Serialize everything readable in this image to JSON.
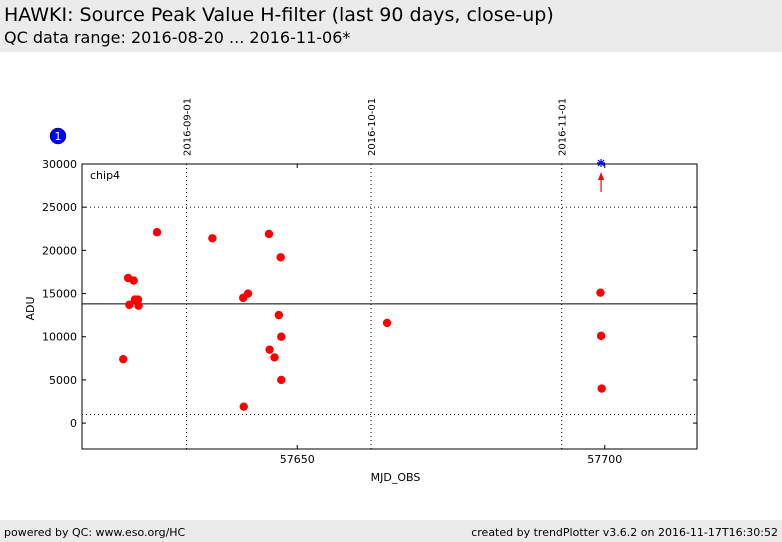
{
  "header": {
    "title": "HAWKI: Source Peak Value H-filter (last 90 days, close-up)",
    "subtitle": "QC data range: 2016-08-20 ... 2016-11-06*"
  },
  "footer": {
    "left": "powered by QC: www.eso.org/HC",
    "right": "created by trendPlotter v3.6.2 on 2016-11-17T16:30:52"
  },
  "chart_data": {
    "type": "scatter",
    "xlabel": "MJD_OBS",
    "ylabel": "ADU",
    "panel_label": "chip4",
    "badge": "1",
    "xlim": [
      57615,
      57715
    ],
    "ylim": [
      -3000,
      30000
    ],
    "xticks": [
      57650,
      57700
    ],
    "yticks": [
      0,
      5000,
      10000,
      15000,
      20000,
      25000,
      30000
    ],
    "date_ticks": [
      {
        "x": 57632,
        "label": "2016-09-01"
      },
      {
        "x": 57662,
        "label": "2016-10-01"
      },
      {
        "x": 57693,
        "label": "2016-11-01"
      }
    ],
    "reference_line": 13800,
    "limit_lines": [
      25000,
      1000
    ],
    "colors": {
      "points": "#ff0000",
      "outlier_arrow": "#ff0000",
      "outlier_marker": "#0000ff",
      "badge": "#0000ff"
    },
    "points": [
      {
        "x": 57621.7,
        "y": 7400
      },
      {
        "x": 57622.5,
        "y": 16800
      },
      {
        "x": 57622.7,
        "y": 13700
      },
      {
        "x": 57623.4,
        "y": 16500
      },
      {
        "x": 57623.6,
        "y": 14300
      },
      {
        "x": 57624.1,
        "y": 14300
      },
      {
        "x": 57624.2,
        "y": 13600
      },
      {
        "x": 57627.2,
        "y": 22100
      },
      {
        "x": 57636.2,
        "y": 21400
      },
      {
        "x": 57641.2,
        "y": 14500
      },
      {
        "x": 57641.3,
        "y": 1900
      },
      {
        "x": 57642.0,
        "y": 15000
      },
      {
        "x": 57645.4,
        "y": 21900
      },
      {
        "x": 57645.5,
        "y": 8500
      },
      {
        "x": 57646.3,
        "y": 7600
      },
      {
        "x": 57647.0,
        "y": 12500
      },
      {
        "x": 57647.3,
        "y": 19200
      },
      {
        "x": 57647.4,
        "y": 10000
      },
      {
        "x": 57647.4,
        "y": 5000
      },
      {
        "x": 57664.6,
        "y": 11600
      },
      {
        "x": 57699.3,
        "y": 15100
      },
      {
        "x": 57699.4,
        "y": 10100
      },
      {
        "x": 57699.5,
        "y": 4000
      }
    ],
    "outliers": [
      {
        "x": 57699.4
      }
    ]
  }
}
